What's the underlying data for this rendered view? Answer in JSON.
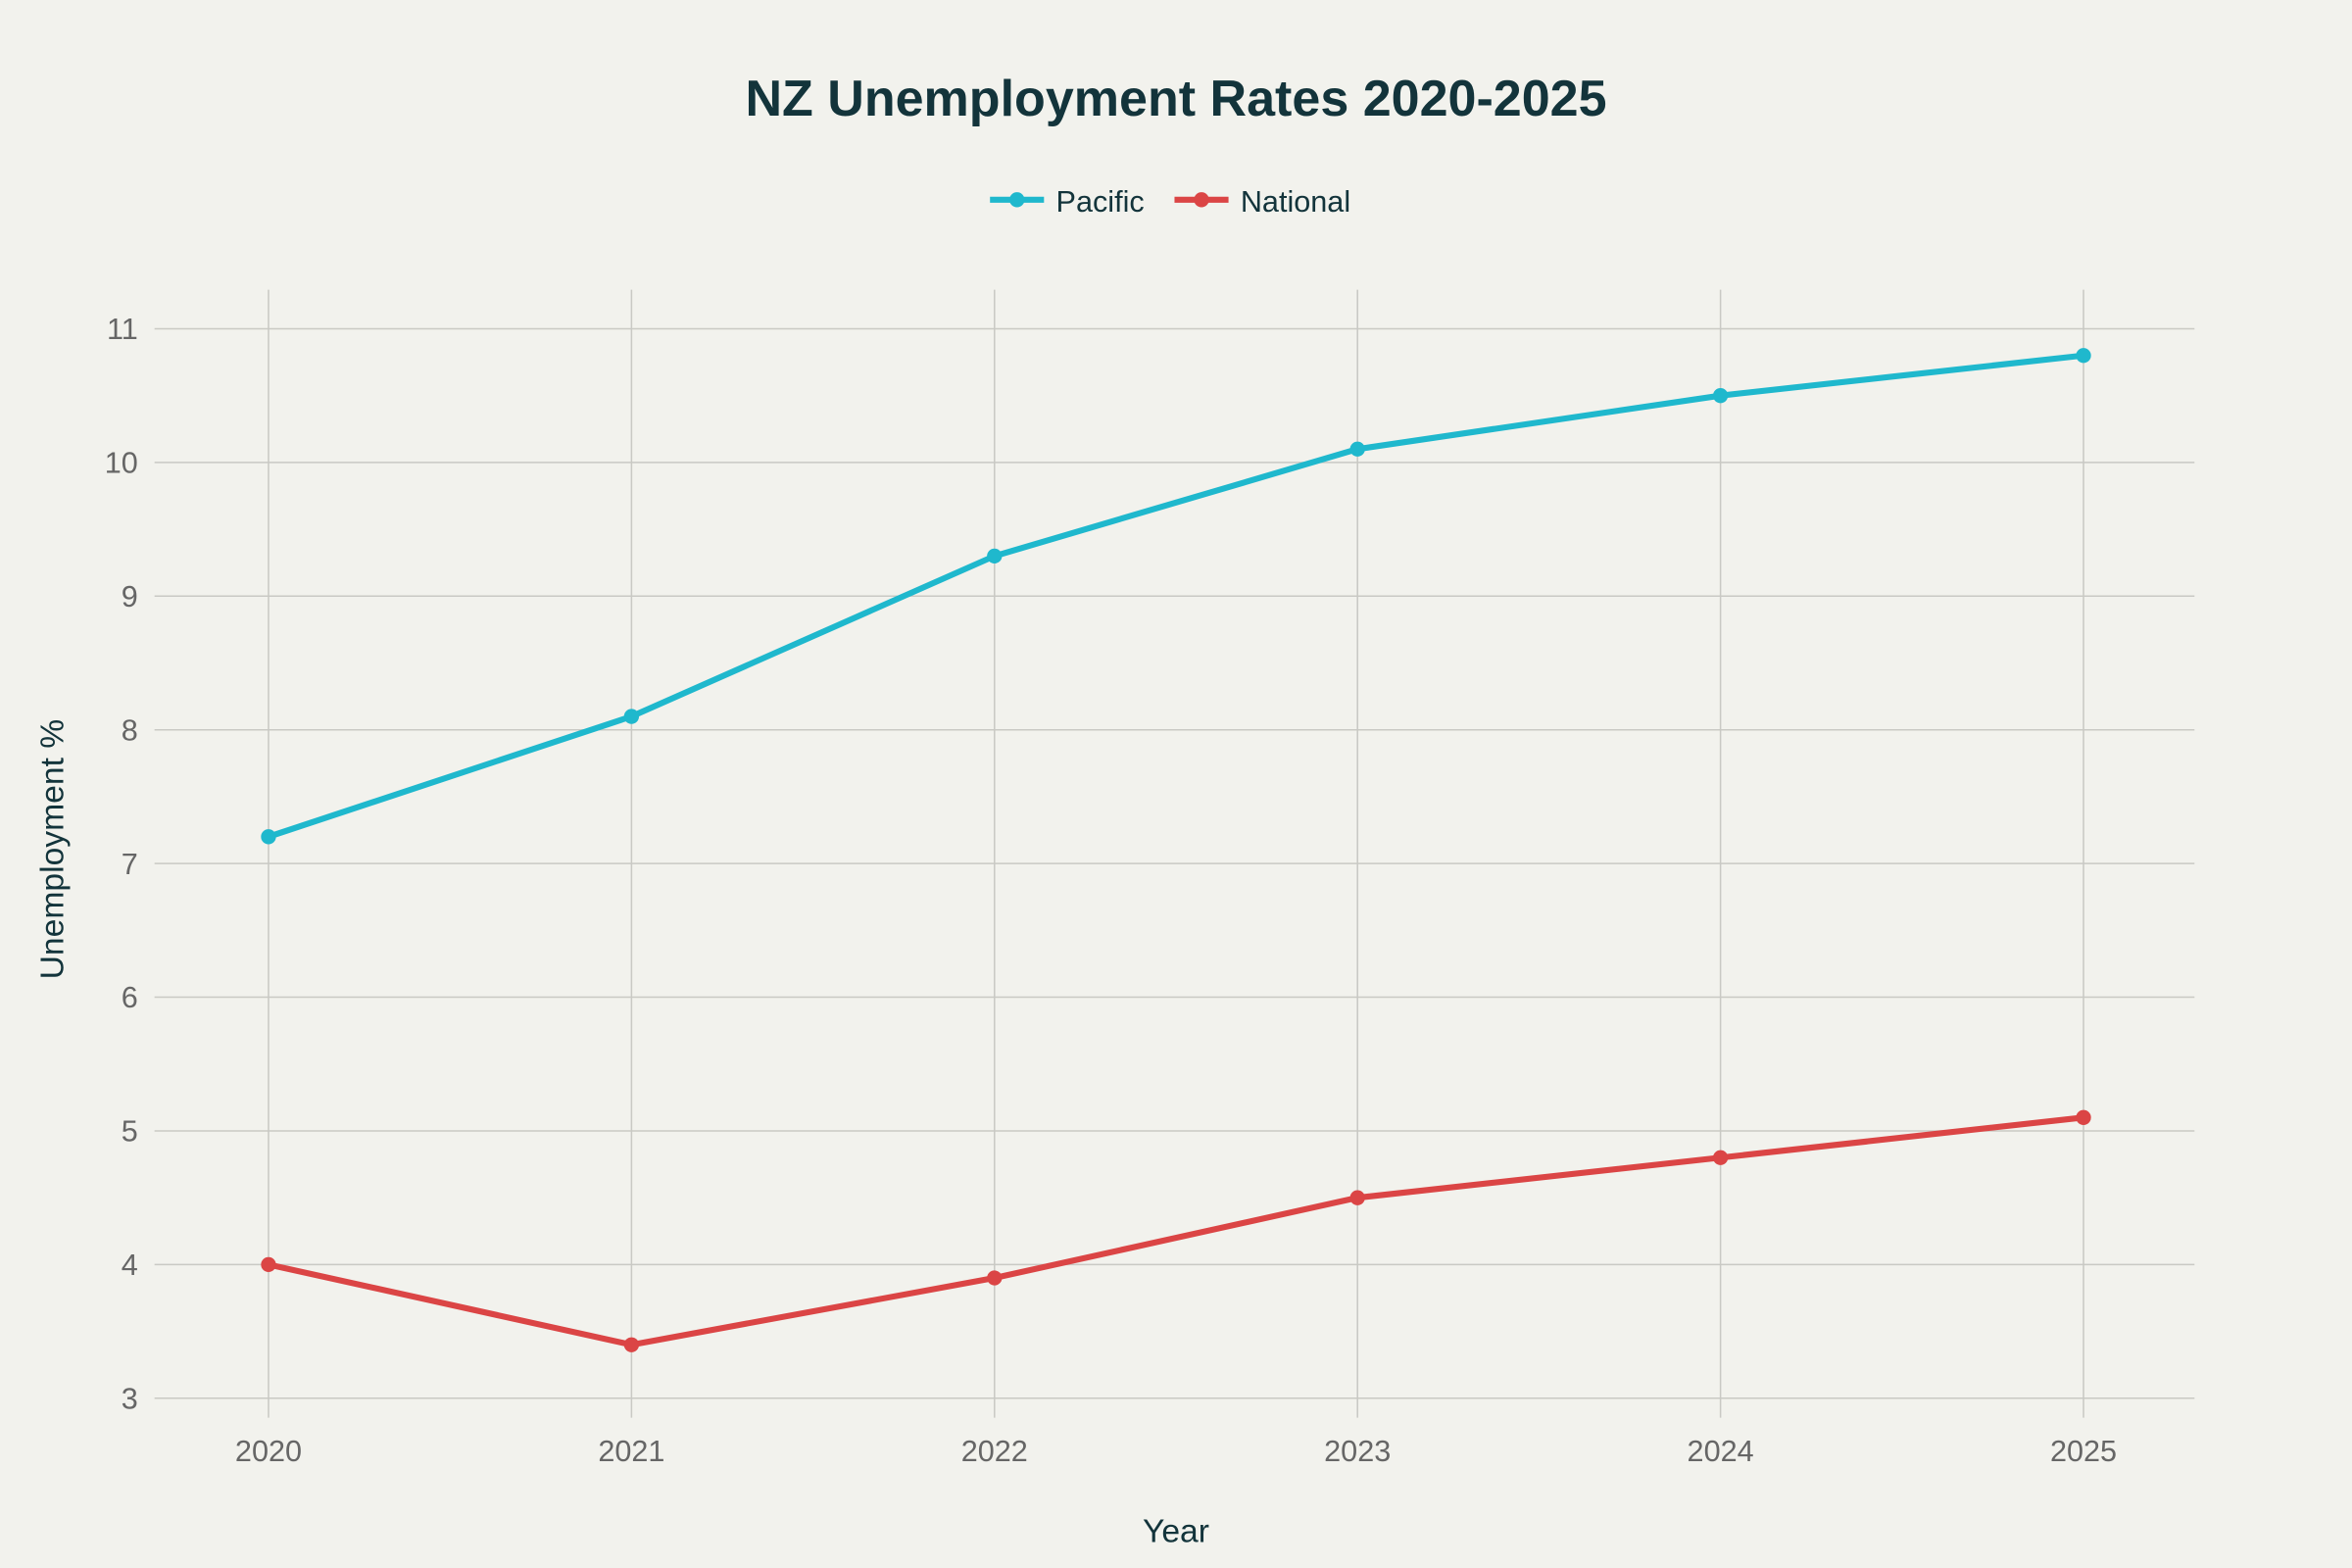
{
  "chart_data": {
    "type": "line",
    "title": "NZ Unemployment Rates 2020-2025",
    "xlabel": "Year",
    "ylabel": "Unemployment %",
    "x": [
      2020,
      2021,
      2022,
      2023,
      2024,
      2025
    ],
    "x_tick_labels": [
      "2020",
      "2021",
      "2022",
      "2023",
      "2024",
      "2025"
    ],
    "y_ticks": [
      3,
      4,
      5,
      6,
      7,
      8,
      9,
      10,
      11
    ],
    "y_tick_labels": [
      "3",
      "4",
      "5",
      "6",
      "7",
      "8",
      "9",
      "10",
      "11"
    ],
    "ylim": [
      2.85,
      11.3
    ],
    "xlim": [
      2019.69,
      2025.31
    ],
    "grid": true,
    "legend_position": "top-center",
    "series": [
      {
        "name": "Pacific",
        "color": "#1fb8cd",
        "values": [
          7.2,
          8.1,
          9.3,
          10.1,
          10.5,
          10.8
        ]
      },
      {
        "name": "National",
        "color": "#db4545",
        "values": [
          4.0,
          3.4,
          3.9,
          4.5,
          4.8,
          5.1
        ]
      }
    ]
  }
}
